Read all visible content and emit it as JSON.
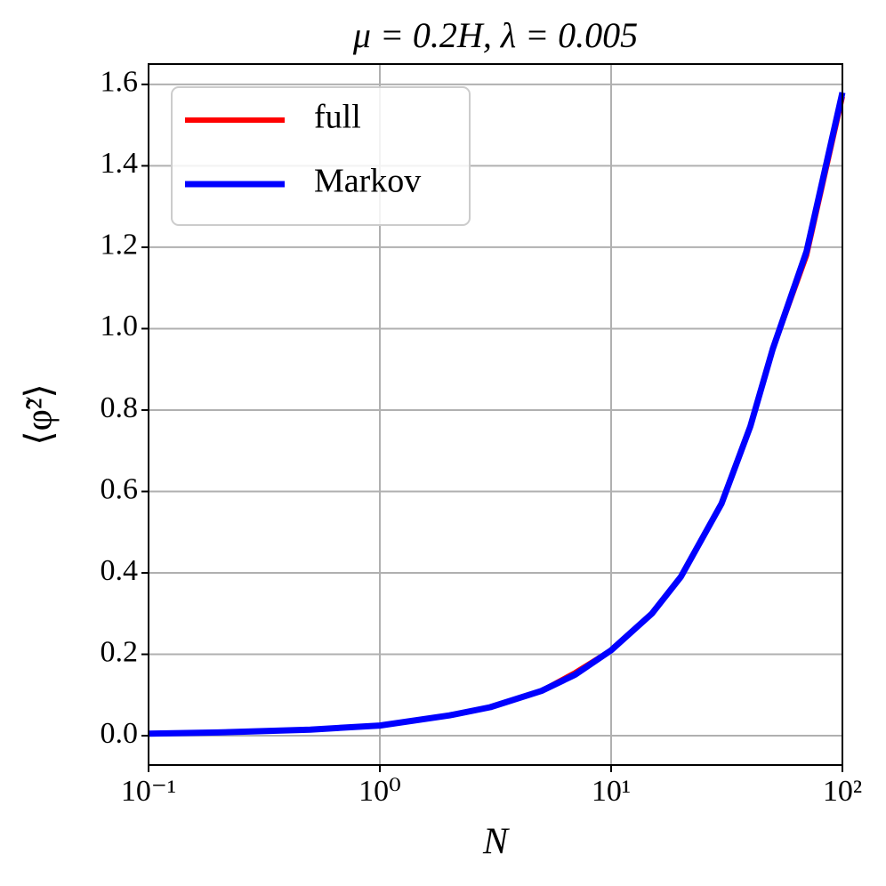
{
  "chart_data": {
    "type": "line",
    "title": "μ = 0.2H,  λ = 0.005",
    "x_label": "N",
    "y_label": "⟨φ̃²⟩",
    "x": [
      0.1,
      0.2,
      0.5,
      1,
      2,
      3,
      5,
      7,
      10,
      15,
      20,
      30,
      40,
      50,
      70,
      100
    ],
    "series": [
      {
        "name": "full",
        "color": "#ff0000",
        "values": [
          0.005,
          0.008,
          0.015,
          0.025,
          0.05,
          0.07,
          0.11,
          0.155,
          0.21,
          0.3,
          0.39,
          0.57,
          0.76,
          0.95,
          1.18,
          1.57
        ]
      },
      {
        "name": "Markov",
        "color": "#0000ff",
        "values": [
          0.005,
          0.008,
          0.015,
          0.025,
          0.05,
          0.07,
          0.11,
          0.15,
          0.21,
          0.3,
          0.39,
          0.57,
          0.76,
          0.95,
          1.19,
          1.58
        ]
      }
    ],
    "xscale": "log",
    "xlim": [
      0.1,
      100
    ],
    "xticks": [
      {
        "value": 0.1,
        "label": "10⁻¹"
      },
      {
        "value": 1,
        "label": "10⁰"
      },
      {
        "value": 10,
        "label": "10¹"
      },
      {
        "value": 100,
        "label": "10²"
      }
    ],
    "ylim": [
      -0.072,
      1.65
    ],
    "yticks": [
      {
        "value": 0,
        "label": "0.0"
      },
      {
        "value": 0.2,
        "label": "0.2"
      },
      {
        "value": 0.4,
        "label": "0.4"
      },
      {
        "value": 0.6,
        "label": "0.6"
      },
      {
        "value": 0.8,
        "label": "0.8"
      },
      {
        "value": 1,
        "label": "1.0"
      },
      {
        "value": 1.2,
        "label": "1.2"
      },
      {
        "value": 1.4,
        "label": "1.4"
      },
      {
        "value": 1.6,
        "label": "1.6"
      }
    ],
    "grid": true,
    "legend": "upper left"
  }
}
